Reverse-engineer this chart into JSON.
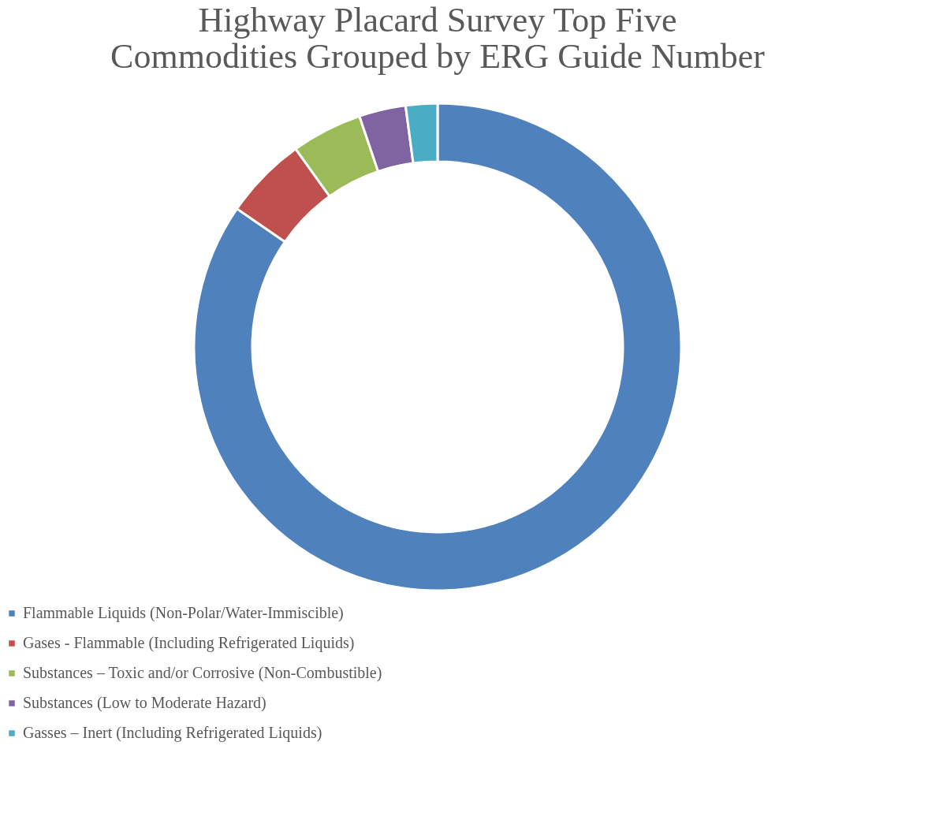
{
  "chart_data": {
    "type": "donut",
    "title": [
      "Highway Placard Survey Top Five",
      "Commodities Grouped by ERG Guide Number"
    ],
    "categories": [
      "Flammable Liquids (Non-Polar/Water-Immiscible)",
      "Gases - Flammable (Including Refrigerated Liquids)",
      "Substances – Toxic and/or Corrosive (Non-Combustible)",
      "Substances (Low to Moderate Hazard)",
      "Gasses – Inert (Including Refrigerated Liquids)"
    ],
    "values": [
      84.6,
      5.5,
      4.7,
      3.1,
      2.1
    ],
    "colors": [
      "#4f81bd",
      "#c0504d",
      "#9bbb59",
      "#8064a2",
      "#4bacc6"
    ],
    "legend": "bottom"
  }
}
